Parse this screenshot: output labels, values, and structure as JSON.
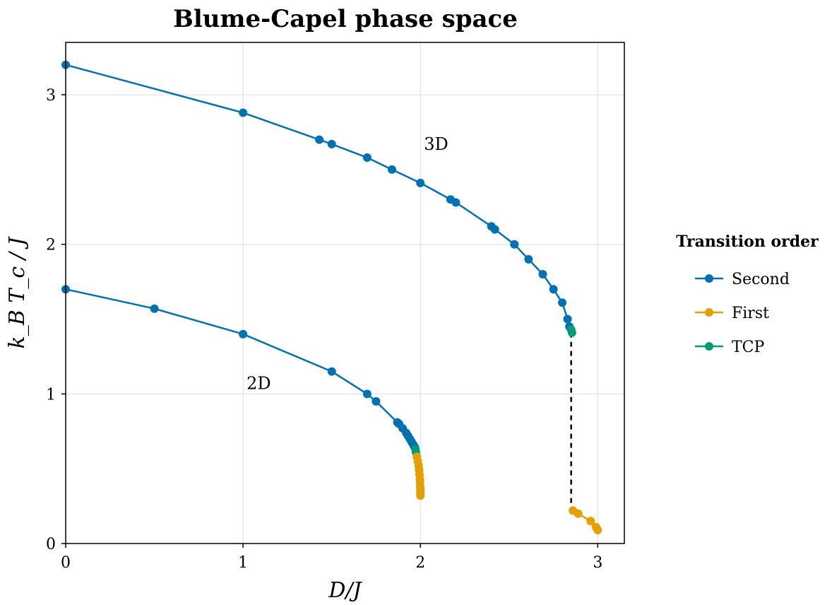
{
  "chart_data": {
    "type": "line",
    "title": "Blume-Capel phase space",
    "xlabel": "D/J",
    "ylabel": "k_B T_c / J",
    "xlim": [
      0,
      3.15
    ],
    "ylim": [
      0,
      3.35
    ],
    "xticks": [
      0,
      1,
      2,
      3
    ],
    "yticks": [
      0,
      1,
      2,
      3
    ],
    "grid": true,
    "legend": {
      "title": "Transition order",
      "position": "right",
      "entries": [
        {
          "label": "Second",
          "color": "#0072B2"
        },
        {
          "label": "First",
          "color": "#E69F00"
        },
        {
          "label": "TCP",
          "color": "#009E73"
        }
      ]
    },
    "annotations": [
      {
        "text": "3D",
        "x": 2.02,
        "y": 2.67
      },
      {
        "text": "2D",
        "x": 1.02,
        "y": 1.07
      }
    ],
    "series": [
      {
        "order": "Second",
        "color": "#0072B2",
        "x": [
          0,
          1,
          1.43,
          1.5,
          1.7,
          1.84,
          2.0,
          2.17,
          2.2,
          2.4,
          2.42,
          2.53,
          2.61,
          2.69,
          2.75,
          2.8,
          2.83,
          2.84
        ],
        "y": [
          3.2,
          2.88,
          2.7,
          2.67,
          2.58,
          2.5,
          2.41,
          2.3,
          2.28,
          2.12,
          2.1,
          2.0,
          1.9,
          1.8,
          1.7,
          1.61,
          1.5,
          1.45
        ]
      },
      {
        "order": "TCP",
        "color": "#009E73",
        "x": [
          2.85,
          2.855
        ],
        "y": [
          1.43,
          1.41
        ]
      },
      {
        "order": "First",
        "color": "#E69F00",
        "x": [
          2.86,
          2.89,
          2.96,
          2.99,
          3.0
        ],
        "y": [
          0.22,
          0.2,
          0.15,
          0.11,
          0.09
        ]
      },
      {
        "order": "Second",
        "color": "#0072B2",
        "x": [
          0,
          0.5,
          1,
          1.5,
          1.7,
          1.75,
          1.87,
          1.88,
          1.9,
          1.92,
          1.93,
          1.94,
          1.95,
          1.96,
          1.965,
          1.97
        ],
        "y": [
          1.7,
          1.57,
          1.4,
          1.15,
          1.0,
          0.95,
          0.81,
          0.8,
          0.77,
          0.74,
          0.72,
          0.7,
          0.68,
          0.66,
          0.65,
          0.64
        ]
      },
      {
        "order": "TCP",
        "color": "#009E73",
        "x": [
          1.972,
          1.975
        ],
        "y": [
          0.63,
          0.61
        ]
      },
      {
        "order": "First",
        "color": "#E69F00",
        "x": [
          1.98,
          1.985,
          1.99,
          1.993,
          1.995,
          1.997,
          1.998,
          1.999,
          2.0,
          2.0,
          2.0,
          2.0
        ],
        "y": [
          0.58,
          0.55,
          0.52,
          0.49,
          0.46,
          0.43,
          0.41,
          0.38,
          0.36,
          0.34,
          0.33,
          0.32
        ]
      }
    ],
    "dashed_line": {
      "x": [
        2.85,
        2.85
      ],
      "y": [
        1.41,
        0.22
      ],
      "color": "#000000"
    }
  }
}
